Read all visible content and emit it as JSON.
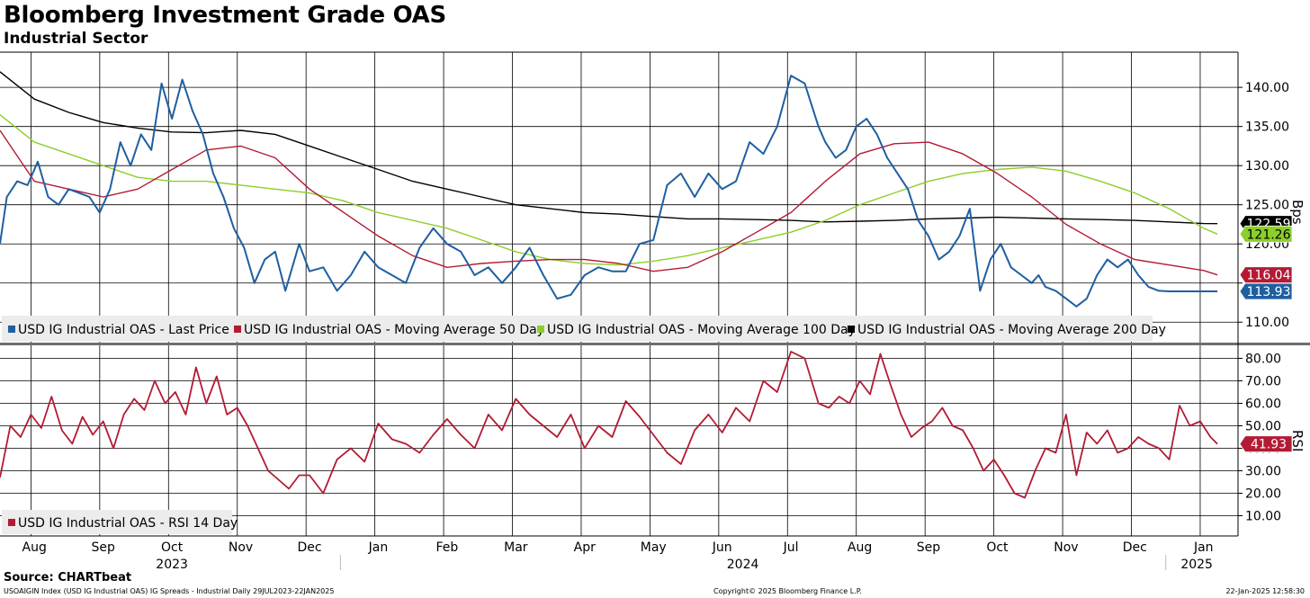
{
  "header": {
    "title": "Bloomberg Investment Grade OAS",
    "subtitle": "Industrial Sector"
  },
  "footer": {
    "source": "Source: CHARTbeat",
    "left": "USOAIGIN Index (USD IG Industrial OAS) IG Spreads - Industrial  Daily 29JUL2023-22JAN2025",
    "center": "Copyright© 2025 Bloomberg Finance L.P.",
    "right": "22-Jan-2025 12:58:30"
  },
  "colors": {
    "last_price": "#1f5fa0",
    "ma50": "#b31b34",
    "ma100": "#8ccf2a",
    "ma200": "#000000",
    "rsi": "#b31b34",
    "grid": "#000000",
    "legend_bg": "#ececec"
  },
  "chart_data": [
    {
      "type": "line",
      "title": "USD IG Industrial OAS",
      "ylabel": "Bps",
      "ylim": [
        108,
        144
      ],
      "yticks": [
        "140.00",
        "135.00",
        "130.00",
        "125.00",
        "120.00",
        "115.00",
        "110.00"
      ],
      "ytick_values": [
        140,
        135,
        130,
        125,
        120,
        115,
        110
      ],
      "x_domain": [
        0,
        18
      ],
      "months": [
        "Aug",
        "Sep",
        "Oct",
        "Nov",
        "Dec",
        "Jan",
        "Feb",
        "Mar",
        "Apr",
        "May",
        "Jun",
        "Jul",
        "Aug",
        "Sep",
        "Oct",
        "Nov",
        "Dec",
        "Jan"
      ],
      "years": [
        {
          "label": "2023",
          "at": 2.5
        },
        {
          "label": "2024",
          "at": 10.8
        },
        {
          "label": "2025",
          "at": 17.4
        }
      ],
      "legend_position": "bottom-left",
      "series": [
        {
          "name": "USD IG Industrial OAS - Last Price",
          "color_key": "last_price",
          "last_value": "113.93",
          "x": [
            0,
            0.1,
            0.25,
            0.4,
            0.55,
            0.7,
            0.85,
            1.0,
            1.15,
            1.3,
            1.45,
            1.6,
            1.75,
            1.9,
            2.05,
            2.2,
            2.35,
            2.5,
            2.65,
            2.8,
            2.95,
            3.1,
            3.25,
            3.4,
            3.55,
            3.7,
            3.85,
            4.0,
            4.15,
            4.35,
            4.5,
            4.7,
            4.9,
            5.1,
            5.3,
            5.5,
            5.7,
            5.9,
            6.1,
            6.3,
            6.5,
            6.7,
            6.9,
            7.1,
            7.3,
            7.5,
            7.7,
            7.9,
            8.1,
            8.3,
            8.5,
            8.7,
            8.9,
            9.1,
            9.3,
            9.5,
            9.7,
            9.9,
            10.1,
            10.3,
            10.5,
            10.7,
            10.9,
            11.1,
            11.3,
            11.5,
            11.7,
            11.9,
            12.0,
            12.15,
            12.3,
            12.45,
            12.6,
            12.75,
            12.9,
            13.05,
            13.2,
            13.35,
            13.5,
            13.65,
            13.8,
            13.95,
            14.1,
            14.25,
            14.4,
            14.55,
            14.7,
            14.85,
            15.0,
            15.1,
            15.2,
            15.35,
            15.5,
            15.65,
            15.8,
            15.95,
            16.1,
            16.25,
            16.4,
            16.55,
            16.7,
            16.85,
            17.0,
            17.15,
            17.3,
            17.45,
            17.6,
            17.7
          ],
          "values": [
            120,
            126,
            128,
            127.5,
            130.5,
            126,
            125,
            127,
            126.5,
            126,
            124,
            127,
            133,
            130,
            134,
            132,
            140.5,
            136,
            141,
            137,
            134,
            129,
            126,
            122,
            119.5,
            115,
            118,
            119,
            114,
            120,
            116.5,
            117,
            114,
            116,
            119,
            117,
            116,
            115,
            119.5,
            122,
            120,
            119,
            116,
            117,
            115,
            117,
            119.5,
            116,
            113,
            113.5,
            116,
            117,
            116.5,
            116.5,
            120,
            120.5,
            127.5,
            129,
            126,
            129,
            127,
            128,
            133,
            131.5,
            135,
            141.5,
            140.5,
            135,
            133,
            131,
            132,
            135,
            136,
            134,
            131,
            129,
            127,
            123,
            121,
            118,
            119,
            121,
            124.5,
            114,
            118,
            120,
            117,
            116,
            115,
            116,
            114.5,
            114,
            113,
            112,
            113,
            116,
            118,
            117,
            118,
            116,
            114.5,
            114,
            113.93,
            113.93,
            113.93,
            113.93,
            113.93,
            113.93
          ]
        },
        {
          "name": "USD IG Industrial OAS - Moving Average 50 Day",
          "color_key": "ma50",
          "last_value": "116.04",
          "x": [
            0,
            0.5,
            1.0,
            1.5,
            2.0,
            2.5,
            3.0,
            3.5,
            4.0,
            4.5,
            5.0,
            5.5,
            6.0,
            6.5,
            7.0,
            7.5,
            8.0,
            8.5,
            9.0,
            9.5,
            10.0,
            10.5,
            11.0,
            11.5,
            12.0,
            12.5,
            13.0,
            13.5,
            14.0,
            14.5,
            15.0,
            15.5,
            16.0,
            16.5,
            17.0,
            17.5,
            17.7
          ],
          "values": [
            134.5,
            128,
            127,
            126,
            127,
            129.5,
            132,
            132.5,
            131,
            127,
            124,
            121,
            118.5,
            117,
            117.5,
            117.8,
            118,
            118,
            117.5,
            116.5,
            117,
            119,
            121.5,
            124,
            128,
            131.5,
            132.8,
            133,
            131.5,
            129,
            126,
            122.5,
            120,
            118,
            117.3,
            116.6,
            116.04
          ]
        },
        {
          "name": "USD IG Industrial OAS - Moving Average 100 Day",
          "color_key": "ma100",
          "last_value": "121.26",
          "x": [
            0,
            0.5,
            1.0,
            1.5,
            2.0,
            2.5,
            3.0,
            3.5,
            4.0,
            4.5,
            5.0,
            5.5,
            6.0,
            6.5,
            7.0,
            7.5,
            8.0,
            8.5,
            9.0,
            9.5,
            10.0,
            10.5,
            11.0,
            11.5,
            12.0,
            12.5,
            13.0,
            13.5,
            14.0,
            14.5,
            15.0,
            15.5,
            16.0,
            16.5,
            17.0,
            17.5,
            17.7
          ],
          "values": [
            136.5,
            133,
            131.5,
            130,
            128.5,
            128,
            128,
            127.5,
            127,
            126.5,
            125.5,
            124,
            123,
            122,
            120.5,
            119,
            118,
            117.5,
            117.3,
            117.8,
            118.5,
            119.5,
            120.5,
            121.5,
            123,
            125,
            126.5,
            128,
            129,
            129.5,
            129.8,
            129.3,
            128,
            126.5,
            124.5,
            122,
            121.26
          ]
        },
        {
          "name": "USD IG Industrial OAS - Moving Average 200 Day",
          "color_key": "ma200",
          "last_value": "122.59",
          "x": [
            0,
            0.5,
            1.0,
            1.5,
            2.0,
            2.5,
            3.0,
            3.5,
            4.0,
            4.5,
            5.0,
            5.5,
            6.0,
            6.5,
            7.0,
            7.5,
            8.0,
            8.5,
            9.0,
            9.5,
            10.0,
            10.5,
            11.0,
            11.5,
            12.0,
            12.5,
            13.0,
            13.5,
            14.0,
            14.5,
            15.0,
            15.5,
            16.0,
            16.5,
            17.0,
            17.5,
            17.7
          ],
          "values": [
            142,
            138.5,
            136.8,
            135.5,
            134.8,
            134.3,
            134.2,
            134.5,
            134,
            132.5,
            131,
            129.5,
            128,
            127,
            126,
            125,
            124.5,
            124,
            123.8,
            123.5,
            123.2,
            123.2,
            123.1,
            123,
            122.8,
            122.9,
            123,
            123.2,
            123.3,
            123.4,
            123.3,
            123.2,
            123.1,
            123,
            122.8,
            122.6,
            122.59
          ]
        }
      ]
    },
    {
      "type": "line",
      "title": "USD IG Industrial OAS - RSI 14 Day",
      "ylabel": "RSI",
      "ylim": [
        5,
        85
      ],
      "yticks": [
        "80.00",
        "70.00",
        "60.00",
        "50.00",
        "40.00",
        "30.00",
        "20.00",
        "10.00"
      ],
      "ytick_values": [
        80,
        70,
        60,
        50,
        40,
        30,
        20,
        10
      ],
      "x_domain": [
        0,
        18
      ],
      "legend_position": "bottom-left",
      "series": [
        {
          "name": "USD IG Industrial OAS - RSI 14 Day",
          "color_key": "rsi",
          "last_value": "41.93",
          "x": [
            0,
            0.15,
            0.3,
            0.45,
            0.6,
            0.75,
            0.9,
            1.05,
            1.2,
            1.35,
            1.5,
            1.65,
            1.8,
            1.95,
            2.1,
            2.25,
            2.4,
            2.55,
            2.7,
            2.85,
            3.0,
            3.15,
            3.3,
            3.45,
            3.6,
            3.75,
            3.9,
            4.05,
            4.2,
            4.35,
            4.5,
            4.7,
            4.9,
            5.1,
            5.3,
            5.5,
            5.7,
            5.9,
            6.1,
            6.3,
            6.5,
            6.7,
            6.9,
            7.1,
            7.3,
            7.5,
            7.7,
            7.9,
            8.1,
            8.3,
            8.5,
            8.7,
            8.9,
            9.1,
            9.3,
            9.5,
            9.7,
            9.9,
            10.1,
            10.3,
            10.5,
            10.7,
            10.9,
            11.1,
            11.3,
            11.5,
            11.7,
            11.9,
            12.05,
            12.2,
            12.35,
            12.5,
            12.65,
            12.8,
            12.95,
            13.1,
            13.25,
            13.4,
            13.55,
            13.7,
            13.85,
            14.0,
            14.15,
            14.3,
            14.45,
            14.6,
            14.75,
            14.9,
            15.05,
            15.2,
            15.35,
            15.5,
            15.65,
            15.8,
            15.95,
            16.1,
            16.25,
            16.4,
            16.55,
            16.7,
            16.85,
            17.0,
            17.15,
            17.3,
            17.45,
            17.6,
            17.7
          ],
          "values": [
            27,
            50,
            45,
            55,
            49,
            63,
            48,
            42,
            54,
            46,
            52,
            40,
            55,
            62,
            57,
            70,
            60,
            65,
            55,
            76,
            60,
            72,
            55,
            58,
            50,
            40,
            30,
            26,
            22,
            28,
            28,
            20,
            35,
            40,
            34,
            51,
            44,
            42,
            38,
            46,
            53,
            46,
            40,
            55,
            48,
            62,
            55,
            50,
            45,
            55,
            40,
            50,
            45,
            61,
            54,
            46,
            38,
            33,
            48,
            55,
            47,
            58,
            52,
            70,
            65,
            83,
            80,
            60,
            58,
            63,
            60,
            70,
            64,
            82,
            68,
            55,
            45,
            49,
            52,
            58,
            50,
            48,
            40,
            30,
            35,
            28,
            20,
            18,
            30,
            40,
            38,
            55,
            28,
            47,
            42,
            48,
            38,
            40,
            45,
            42,
            40,
            35,
            59,
            50,
            52,
            45,
            41.93
          ]
        }
      ]
    }
  ]
}
